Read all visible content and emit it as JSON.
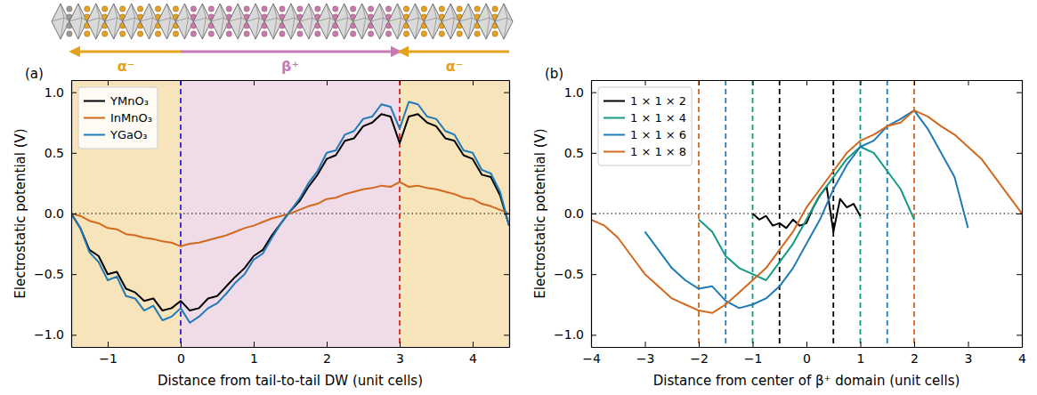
{
  "chart_data": [
    {
      "type": "line",
      "panel_label": "(a)",
      "x_label": "Distance from tail-to-tail DW (unit cells)",
      "y_label": "Electrostatic potential (V)",
      "xlim": [
        -1.5,
        4.5
      ],
      "ylim": [
        -1.1,
        1.1
      ],
      "xticks": [
        {
          "value": -1,
          "label": "−1"
        },
        0,
        1,
        2,
        3,
        4
      ],
      "yticks": [
        {
          "value": -1,
          "label": "−1.0"
        },
        {
          "value": -0.5,
          "label": "−0.5"
        },
        {
          "value": 0,
          "label": "0.0"
        },
        0.5,
        {
          "value": 1,
          "label": "1.0"
        }
      ],
      "legend": "upper-left",
      "regions": [
        {
          "x0": -1.5,
          "x1": 0,
          "color": "#f8e4bb"
        },
        {
          "x0": 0,
          "x1": 3,
          "color": "#f0dbe9"
        },
        {
          "x0": 3,
          "x1": 4.5,
          "color": "#f8e4bb"
        }
      ],
      "domains": [
        {
          "label": "α⁻",
          "from": 0,
          "to": -1.5,
          "color": "#e6a11e"
        },
        {
          "label": "β⁺",
          "from": 0,
          "to": 3,
          "color": "#c878b4"
        },
        {
          "label": "α⁻",
          "from": 4.5,
          "to": 3,
          "color": "#e6a11e"
        }
      ],
      "hlines": [
        {
          "y": 0,
          "color": "#000000",
          "line_style": "dotted"
        }
      ],
      "vlines": [
        {
          "x": 0,
          "color": "#2424e6",
          "line_style": "dashed"
        },
        {
          "x": 3,
          "color": "#e52222",
          "line_style": "dashed"
        }
      ],
      "x": [
        -1.5,
        -1.375,
        -1.25,
        -1.125,
        -1,
        -0.875,
        -0.75,
        -0.625,
        -0.5,
        -0.375,
        -0.25,
        -0.125,
        0,
        0.125,
        0.25,
        0.375,
        0.5,
        0.625,
        0.75,
        0.875,
        1,
        1.125,
        1.25,
        1.375,
        1.5,
        1.625,
        1.75,
        1.875,
        2,
        2.125,
        2.25,
        2.375,
        2.5,
        2.625,
        2.75,
        2.875,
        3,
        3.125,
        3.25,
        3.375,
        3.5,
        3.625,
        3.75,
        3.875,
        4,
        4.125,
        4.25,
        4.375,
        4.5
      ],
      "series": [
        {
          "name": "YMnO₃",
          "color": "#000000",
          "values": [
            0.0,
            -0.12,
            -0.3,
            -0.35,
            -0.5,
            -0.48,
            -0.62,
            -0.65,
            -0.72,
            -0.7,
            -0.8,
            -0.78,
            -0.72,
            -0.8,
            -0.78,
            -0.7,
            -0.68,
            -0.6,
            -0.52,
            -0.45,
            -0.35,
            -0.3,
            -0.18,
            -0.08,
            0.02,
            0.1,
            0.22,
            0.32,
            0.45,
            0.48,
            0.6,
            0.62,
            0.72,
            0.75,
            0.82,
            0.8,
            0.58,
            0.8,
            0.82,
            0.75,
            0.72,
            0.62,
            0.6,
            0.48,
            0.45,
            0.32,
            0.3,
            0.15,
            -0.1
          ]
        },
        {
          "name": "InMnO₃",
          "color": "#d2691e",
          "values": [
            0.0,
            -0.02,
            -0.06,
            -0.08,
            -0.12,
            -0.13,
            -0.17,
            -0.18,
            -0.2,
            -0.21,
            -0.23,
            -0.24,
            -0.27,
            -0.25,
            -0.24,
            -0.22,
            -0.2,
            -0.18,
            -0.15,
            -0.12,
            -0.1,
            -0.07,
            -0.04,
            -0.02,
            0.0,
            0.03,
            0.06,
            0.08,
            0.12,
            0.13,
            0.16,
            0.18,
            0.2,
            0.21,
            0.23,
            0.22,
            0.26,
            0.22,
            0.23,
            0.21,
            0.2,
            0.18,
            0.16,
            0.13,
            0.12,
            0.08,
            0.06,
            0.03,
            0.0
          ]
        },
        {
          "name": "YGaO₃",
          "color": "#1f7ab8",
          "values": [
            0.0,
            -0.12,
            -0.32,
            -0.4,
            -0.55,
            -0.52,
            -0.68,
            -0.7,
            -0.8,
            -0.76,
            -0.88,
            -0.85,
            -0.78,
            -0.9,
            -0.85,
            -0.78,
            -0.74,
            -0.66,
            -0.57,
            -0.5,
            -0.38,
            -0.33,
            -0.2,
            -0.08,
            0.02,
            0.12,
            0.25,
            0.35,
            0.5,
            0.52,
            0.65,
            0.68,
            0.78,
            0.8,
            0.9,
            0.88,
            0.7,
            0.92,
            0.9,
            0.8,
            0.78,
            0.68,
            0.65,
            0.52,
            0.5,
            0.36,
            0.33,
            0.18,
            -0.1
          ]
        }
      ]
    },
    {
      "type": "line",
      "panel_label": "(b)",
      "x_label": "Distance from center of β⁺ domain (unit cells)",
      "y_label": "Electrostatic potential (V)",
      "xlim": [
        -4,
        4
      ],
      "ylim": [
        -1.1,
        1.1
      ],
      "xticks": [
        {
          "value": -4,
          "label": "−4"
        },
        {
          "value": -3,
          "label": "−3"
        },
        {
          "value": -2,
          "label": "−2"
        },
        {
          "value": -1,
          "label": "−1"
        },
        0,
        1,
        2,
        3,
        4
      ],
      "yticks": [
        {
          "value": -1,
          "label": "−1.0"
        },
        {
          "value": -0.5,
          "label": "−0.5"
        },
        {
          "value": 0,
          "label": "0.0"
        },
        0.5,
        {
          "value": 1,
          "label": "1.0"
        }
      ],
      "legend": "upper-left",
      "hlines": [
        {
          "y": 0,
          "color": "#000000",
          "line_style": "dotted"
        }
      ],
      "vlines": [
        {
          "x": -0.5,
          "color": "#000000",
          "line_style": "dashed"
        },
        {
          "x": 0.5,
          "color": "#000000",
          "line_style": "dashed"
        },
        {
          "x": -1,
          "color": "#129a82",
          "line_style": "dashed"
        },
        {
          "x": 1,
          "color": "#129a82",
          "line_style": "dashed"
        },
        {
          "x": -1.5,
          "color": "#1f7ab8",
          "line_style": "dashed"
        },
        {
          "x": 1.5,
          "color": "#1f7ab8",
          "line_style": "dashed"
        },
        {
          "x": -2,
          "color": "#d2691e",
          "line_style": "dashed"
        },
        {
          "x": 2,
          "color": "#d2691e",
          "line_style": "dashed"
        }
      ],
      "series": [
        {
          "name": "1 × 1 × 2",
          "color": "#000000",
          "x": [
            -1,
            -0.875,
            -0.75,
            -0.625,
            -0.5,
            -0.375,
            -0.25,
            -0.125,
            0,
            0.125,
            0.25,
            0.375,
            0.5,
            0.625,
            0.75,
            0.875,
            1
          ],
          "values": [
            0.0,
            -0.05,
            -0.02,
            -0.1,
            -0.08,
            -0.12,
            -0.05,
            -0.1,
            -0.08,
            0.05,
            0.15,
            0.22,
            -0.15,
            0.12,
            0.05,
            0.08,
            -0.02
          ]
        },
        {
          "name": "1 × 1 × 4",
          "color": "#129a82",
          "x": [
            -2,
            -1.75,
            -1.5,
            -1.25,
            -1,
            -0.75,
            -0.5,
            -0.25,
            0,
            0.25,
            0.5,
            0.75,
            1,
            1.25,
            1.5,
            1.75,
            2
          ],
          "values": [
            -0.05,
            -0.15,
            -0.35,
            -0.45,
            -0.5,
            -0.55,
            -0.4,
            -0.25,
            -0.05,
            0.15,
            0.3,
            0.45,
            0.55,
            0.5,
            0.35,
            0.2,
            -0.05
          ]
        },
        {
          "name": "1 × 1 × 6",
          "color": "#1f7ab8",
          "x": [
            -3,
            -2.75,
            -2.5,
            -2.25,
            -2,
            -1.75,
            -1.5,
            -1.25,
            -1,
            -0.75,
            -0.5,
            -0.25,
            0,
            0.25,
            0.5,
            0.75,
            1,
            1.25,
            1.5,
            1.75,
            2,
            2.25,
            2.5,
            2.75,
            3
          ],
          "values": [
            -0.15,
            -0.3,
            -0.45,
            -0.55,
            -0.62,
            -0.6,
            -0.72,
            -0.78,
            -0.75,
            -0.7,
            -0.6,
            -0.45,
            -0.25,
            -0.05,
            0.2,
            0.4,
            0.55,
            0.6,
            0.72,
            0.78,
            0.85,
            0.7,
            0.5,
            0.3,
            -0.12
          ]
        },
        {
          "name": "1 × 1 × 8",
          "color": "#d2691e",
          "x": [
            -4,
            -3.75,
            -3.5,
            -3.25,
            -3,
            -2.75,
            -2.5,
            -2.25,
            -2,
            -1.75,
            -1.5,
            -1.25,
            -1,
            -0.75,
            -0.5,
            -0.25,
            0,
            0.25,
            0.5,
            0.75,
            1,
            1.25,
            1.5,
            1.75,
            2,
            2.25,
            2.5,
            2.75,
            3,
            3.25,
            3.5,
            3.75,
            4
          ],
          "values": [
            -0.05,
            -0.1,
            -0.2,
            -0.35,
            -0.5,
            -0.6,
            -0.7,
            -0.75,
            -0.8,
            -0.82,
            -0.75,
            -0.65,
            -0.55,
            -0.45,
            -0.3,
            -0.15,
            0.05,
            0.2,
            0.35,
            0.5,
            0.6,
            0.65,
            0.72,
            0.75,
            0.85,
            0.8,
            0.72,
            0.65,
            0.55,
            0.45,
            0.3,
            0.15,
            0.0
          ]
        }
      ]
    }
  ]
}
